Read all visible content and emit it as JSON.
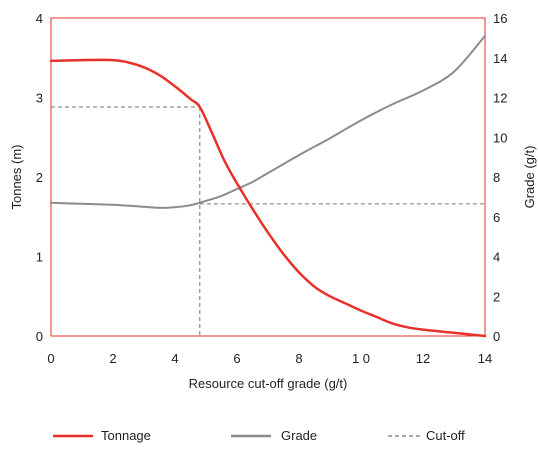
{
  "chart_data": {
    "type": "line",
    "xlabel": "Resource cut-off grade (g/t)",
    "ylabel": "Tonnes (m)",
    "y2label": "Grade (g/t)",
    "xlim": [
      0,
      14
    ],
    "ylim": [
      0,
      4
    ],
    "y2lim": [
      0,
      16
    ],
    "x_ticks": [
      "0",
      "2",
      "4",
      "6",
      "8",
      "1 0",
      "12",
      "14"
    ],
    "y_ticks": [
      "0",
      "1",
      "2",
      "3",
      "4"
    ],
    "y2_ticks": [
      "0",
      "2",
      "4",
      "6",
      "8",
      "10",
      "12",
      "14",
      "16"
    ],
    "grid": false,
    "legend_position": "bottom",
    "colors": {
      "tonnage": "#e8312a",
      "grade": "#8c8c8c",
      "cutoff": "#777777",
      "frame": "#e8312a"
    },
    "series": [
      {
        "name": "Tonnage",
        "axis": "left",
        "style": "solid",
        "x": [
          0,
          1,
          2,
          2.5,
          3,
          3.5,
          4,
          4.5,
          4.8,
          5.2,
          5.6,
          6,
          6.5,
          7,
          7.5,
          8,
          8.5,
          9,
          9.5,
          10,
          10.5,
          11,
          11.5,
          12,
          12.5,
          13,
          13.5,
          14
        ],
        "values": [
          3.46,
          3.47,
          3.47,
          3.44,
          3.38,
          3.28,
          3.14,
          2.98,
          2.88,
          2.55,
          2.2,
          1.92,
          1.6,
          1.3,
          1.03,
          0.8,
          0.62,
          0.5,
          0.41,
          0.32,
          0.24,
          0.16,
          0.11,
          0.08,
          0.06,
          0.04,
          0.02,
          0.0
        ]
      },
      {
        "name": "Grade",
        "axis": "right",
        "style": "solid",
        "x": [
          0,
          1,
          2,
          3,
          3.5,
          4,
          4.5,
          5,
          5.5,
          6,
          6.5,
          7,
          8,
          9,
          10,
          11,
          12,
          13,
          14
        ],
        "values": [
          6.7,
          6.65,
          6.6,
          6.5,
          6.45,
          6.48,
          6.58,
          6.8,
          7.05,
          7.4,
          7.75,
          8.2,
          9.1,
          9.95,
          10.85,
          11.65,
          12.35,
          13.3,
          15.1
        ]
      }
    ],
    "cutoff": {
      "name": "Cut-off",
      "x": 4.8,
      "tonnage": 2.88,
      "grade": 6.65
    },
    "legend": [
      {
        "label": "Tonnage",
        "style": "solid-red"
      },
      {
        "label": "Grade",
        "style": "solid-grey"
      },
      {
        "label": "Cut-off",
        "style": "dashed"
      }
    ]
  }
}
